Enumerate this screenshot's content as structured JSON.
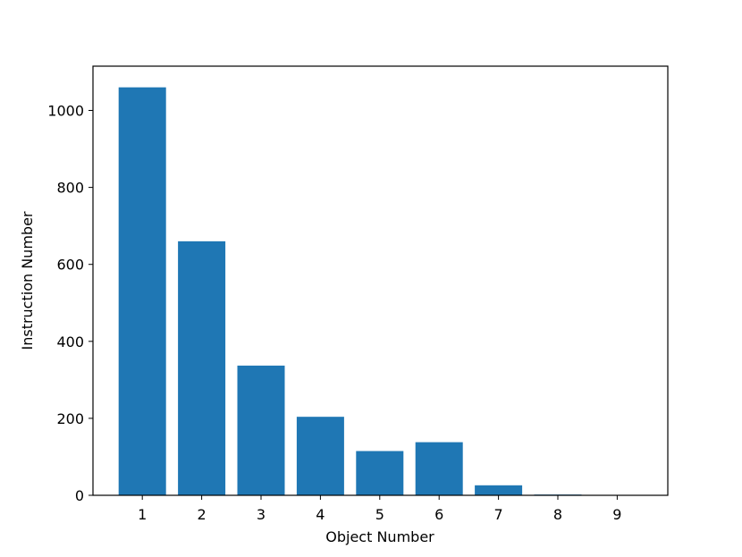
{
  "chart_data": {
    "type": "bar",
    "title": "",
    "xlabel": "Object Number",
    "ylabel": "Instruction Number",
    "categories": [
      "1",
      "2",
      "3",
      "4",
      "5",
      "6",
      "7",
      "8",
      "9"
    ],
    "values": [
      1060,
      660,
      337,
      204,
      115,
      138,
      26,
      2,
      1
    ],
    "ylim": [
      0,
      1115
    ],
    "yticks": [
      0,
      200,
      400,
      600,
      800,
      1000
    ],
    "bar_color": "#1f77b4",
    "grid": false,
    "legend": "none"
  }
}
